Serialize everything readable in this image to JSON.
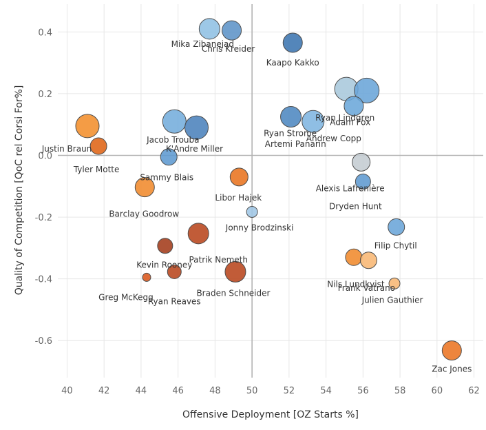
{
  "chart_data": {
    "type": "scatter",
    "title": "",
    "xlabel": "Offensive Deployment [OZ Starts %]",
    "ylabel": "Quality of Competition [QoC rel Corsi For%]",
    "xlim": [
      39.5,
      62.5
    ],
    "ylim": [
      -0.72,
      0.49
    ],
    "x_ticks": [
      40,
      42,
      44,
      46,
      48,
      50,
      52,
      54,
      56,
      58,
      60,
      62
    ],
    "y_ticks": [
      0.4,
      0.2,
      0.0,
      -0.2,
      -0.4,
      -0.6
    ],
    "y_tick_labels": [
      "0.4",
      "0.2",
      "0.0",
      "-0.2",
      "-0.4",
      "-0.6"
    ],
    "reference_lines": {
      "x": 50,
      "y": 0
    },
    "grid": true,
    "legend": "none",
    "points": [
      {
        "label": "Mika Zibanejad",
        "x": 47.7,
        "y": 0.41,
        "size": 15,
        "color": "#8fc0e4"
      },
      {
        "label": "Chris Kreider",
        "x": 48.9,
        "y": 0.405,
        "size": 14,
        "color": "#5d93c7"
      },
      {
        "label": "Kaapo Kakko",
        "x": 52.2,
        "y": 0.365,
        "size": 14,
        "color": "#3c75b0"
      },
      {
        "label": "Ryan Lindgren",
        "x": 55.1,
        "y": 0.215,
        "size": 17,
        "color": "#a9c8dc"
      },
      {
        "label": "Adam Fox",
        "x": 56.2,
        "y": 0.21,
        "size": 18,
        "color": "#6aa5d8"
      },
      {
        "label": "",
        "x": 55.5,
        "y": 0.16,
        "size": 14,
        "color": "#6ba7da"
      },
      {
        "label": "Ryan Strome",
        "x": 52.1,
        "y": 0.125,
        "size": 15,
        "color": "#4d87c0"
      },
      {
        "label": "Andrew Copp",
        "x": 53.3,
        "y": 0.11,
        "size": 16,
        "color": "#7fb5e0"
      },
      {
        "label": "Jacob Trouba",
        "x": 45.8,
        "y": 0.11,
        "size": 17,
        "color": "#74addc"
      },
      {
        "label": "K'Andre Miller",
        "x": 47.0,
        "y": 0.09,
        "size": 17,
        "color": "#4b82bc"
      },
      {
        "label": "Artemi Panarin",
        "x": 52.2,
        "y": 0.06,
        "size": 0,
        "color": "#ffffff"
      },
      {
        "label": "Justin Braun",
        "x": 41.1,
        "y": 0.095,
        "size": 17,
        "color": "#f28e2b"
      },
      {
        "label": "Tyler Motte",
        "x": 41.7,
        "y": 0.03,
        "size": 12,
        "color": "#df6416"
      },
      {
        "label": "Sammy Blais",
        "x": 45.5,
        "y": -0.005,
        "size": 12,
        "color": "#5f9ad0"
      },
      {
        "label": "Alexis Lafrenière",
        "x": 55.9,
        "y": -0.022,
        "size": 13,
        "color": "#c4ccd1"
      },
      {
        "label": "Dryden Hunt",
        "x": 56.0,
        "y": -0.085,
        "size": 11,
        "color": "#5f9ad0"
      },
      {
        "label": "Barclay Goodrow",
        "x": 44.2,
        "y": -0.103,
        "size": 14,
        "color": "#f08a2c"
      },
      {
        "label": "Libor Hajek",
        "x": 49.3,
        "y": -0.07,
        "size": 13,
        "color": "#e8731f"
      },
      {
        "label": "Jonny Brodzinski",
        "x": 50.0,
        "y": -0.183,
        "size": 8,
        "color": "#9fc6e5"
      },
      {
        "label": "Filip Chytil",
        "x": 57.8,
        "y": -0.232,
        "size": 12,
        "color": "#6aa5d8"
      },
      {
        "label": "Patrik Nemeth",
        "x": 47.1,
        "y": -0.253,
        "size": 15,
        "color": "#b8461c"
      },
      {
        "label": "Kevin Rooney",
        "x": 45.3,
        "y": -0.293,
        "size": 11,
        "color": "#a33b1a"
      },
      {
        "label": "Nils Lundkvist",
        "x": 55.5,
        "y": -0.33,
        "size": 12,
        "color": "#f08a2c"
      },
      {
        "label": "Frank Vatrano",
        "x": 56.3,
        "y": -0.34,
        "size": 12,
        "color": "#f8b774"
      },
      {
        "label": "Ryan Reaves",
        "x": 45.8,
        "y": -0.377,
        "size": 10,
        "color": "#b8461c"
      },
      {
        "label": "Braden Schneider",
        "x": 49.1,
        "y": -0.377,
        "size": 15,
        "color": "#b8461c"
      },
      {
        "label": "Greg McKegg",
        "x": 44.3,
        "y": -0.395,
        "size": 6,
        "color": "#d9561b"
      },
      {
        "label": "Julien Gauthier",
        "x": 57.7,
        "y": -0.415,
        "size": 8,
        "color": "#f8b774"
      },
      {
        "label": "Zac Jones",
        "x": 60.8,
        "y": -0.632,
        "size": 14,
        "color": "#ea7422"
      }
    ]
  }
}
